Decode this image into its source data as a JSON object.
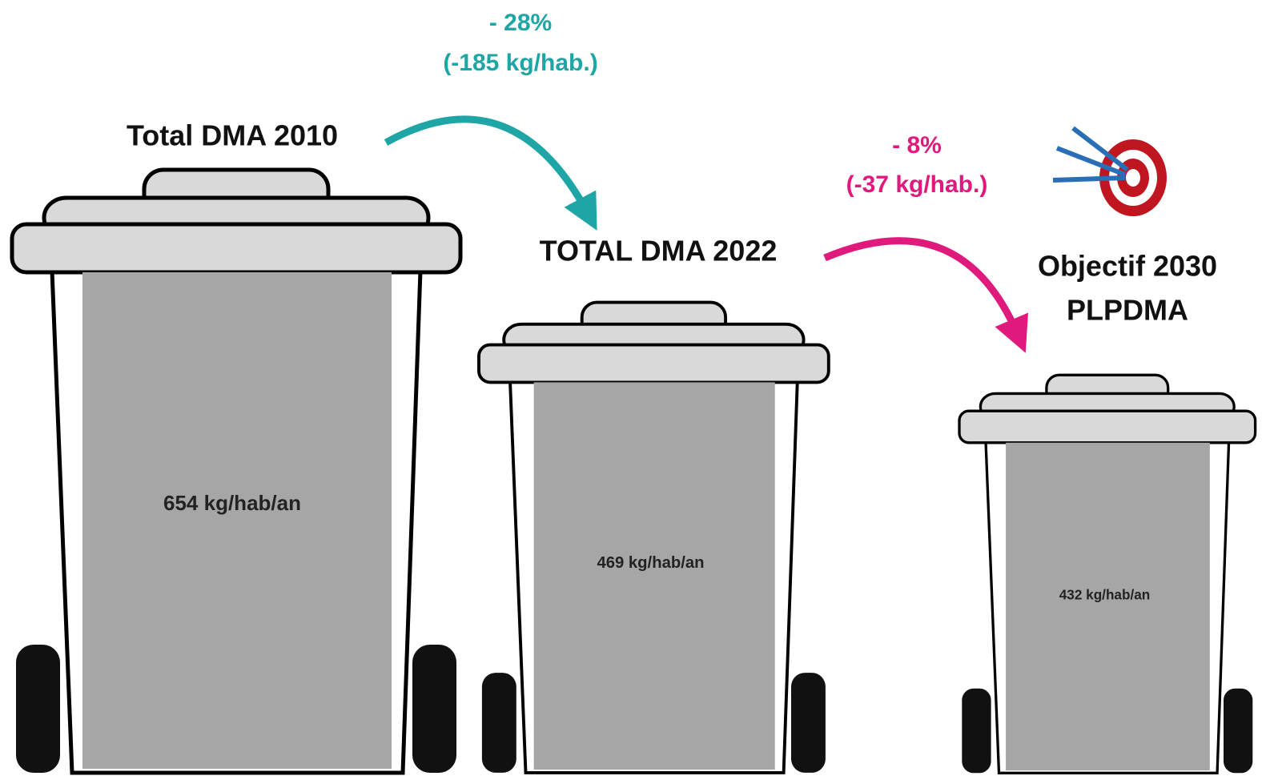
{
  "bins": [
    {
      "title": [
        "Total DMA 2010"
      ],
      "label": "654 kg/hab/an"
    },
    {
      "title": [
        "TOTAL DMA 2022"
      ],
      "label": "469 kg/hab/an"
    },
    {
      "title": [
        "Objectif 2030",
        "PLPDMA"
      ],
      "label": "432 kg/hab/an"
    }
  ],
  "changes": [
    {
      "percent": "- 28%",
      "detail": "(-185 kg/hab.)"
    },
    {
      "percent": "- 8%",
      "detail": "(-37 kg/hab.)"
    }
  ]
}
